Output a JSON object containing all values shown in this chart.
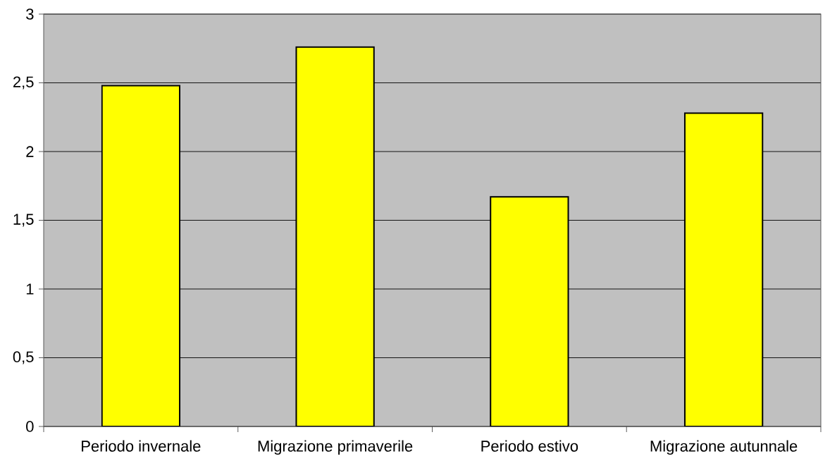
{
  "chart_data": {
    "type": "bar",
    "categories": [
      "Periodo invernale",
      "Migrazione primaverile",
      "Periodo estivo",
      "Migrazione autunnale"
    ],
    "values": [
      2.48,
      2.76,
      1.67,
      2.28
    ],
    "color": "#ffff00",
    "ylim": [
      0,
      3
    ],
    "yticks": [
      0,
      {
        "value": 0.5,
        "label": "0,5"
      },
      1,
      {
        "value": 1.5,
        "label": "1,5"
      },
      2,
      {
        "value": 2.5,
        "label": "2,5"
      },
      3
    ],
    "grid": "y"
  }
}
